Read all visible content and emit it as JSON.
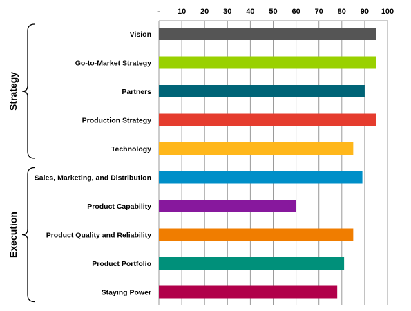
{
  "chart_data": {
    "type": "bar",
    "orientation": "horizontal",
    "categories": [
      "Vision",
      "Go-to-Market Strategy",
      "Partners",
      "Production Strategy",
      "Technology",
      "Sales, Marketing, and Distribution",
      "Product Capability",
      "Product Quality and Reliability",
      "Product Portfolio",
      "Staying Power"
    ],
    "values": [
      95,
      95,
      90,
      95,
      85,
      89,
      60,
      85,
      81,
      78
    ],
    "colors": [
      "#555555",
      "#99d100",
      "#006477",
      "#e53c2e",
      "#ffb71b",
      "#008fc8",
      "#87189d",
      "#f07d00",
      "#00907a",
      "#b1004a"
    ],
    "xlim": [
      0,
      100
    ],
    "xticks": [
      "-",
      "10",
      "20",
      "30",
      "40",
      "50",
      "60",
      "70",
      "80",
      "90",
      "100"
    ],
    "xaxis_position": "top",
    "grid": true,
    "groups": [
      {
        "label": "Strategy",
        "first": 0,
        "last": 4
      },
      {
        "label": "Execution",
        "first": 5,
        "last": 9
      }
    ]
  }
}
